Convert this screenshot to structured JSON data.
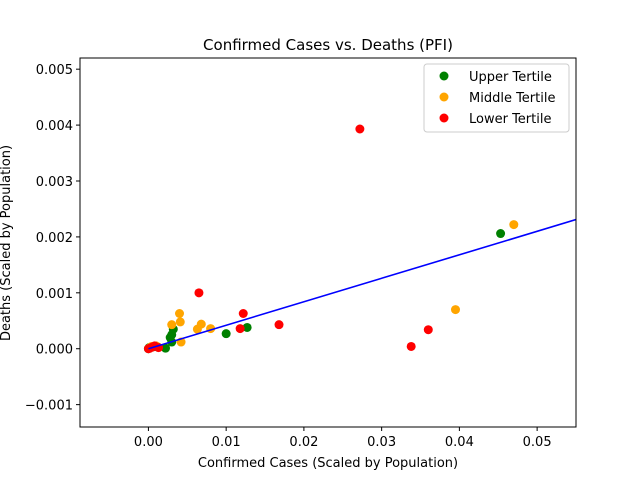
{
  "chart_data": {
    "type": "scatter",
    "title": "Confirmed Cases vs. Deaths (PFI)",
    "xlabel": "Confirmed Cases (Scaled by Population)",
    "ylabel": "Deaths (Scaled by Population)",
    "xlim": [
      -0.0088,
      0.055
    ],
    "ylim": [
      -0.0014,
      0.0052
    ],
    "xticks": [
      0.0,
      0.01,
      0.02,
      0.03,
      0.04,
      0.05
    ],
    "xtick_labels": [
      "0.00",
      "0.01",
      "0.02",
      "0.03",
      "0.04",
      "0.05"
    ],
    "yticks": [
      -0.001,
      0.0,
      0.001,
      0.002,
      0.003,
      0.004,
      0.005
    ],
    "ytick_labels": [
      "−0.001",
      "0.000",
      "0.001",
      "0.002",
      "0.003",
      "0.004",
      "0.005"
    ],
    "grid": false,
    "legend_position": "top-right",
    "series": [
      {
        "name": "Upper Tertile",
        "color": "#008000",
        "points": [
          [
            0.0,
            0.0
          ],
          [
            0.0001,
            2e-05
          ],
          [
            0.0005,
            3e-05
          ],
          [
            0.0008,
            4e-05
          ],
          [
            0.0012,
            3e-05
          ],
          [
            0.0022,
            1e-05
          ],
          [
            0.0028,
            0.0002
          ],
          [
            0.003,
            0.00012
          ],
          [
            0.003,
            0.00025
          ],
          [
            0.0032,
            0.00035
          ],
          [
            0.01,
            0.00027
          ],
          [
            0.0127,
            0.00038
          ],
          [
            0.0453,
            0.00206
          ]
        ]
      },
      {
        "name": "Middle Tertile",
        "color": "#ffa500",
        "points": [
          [
            0.0001,
            1e-05
          ],
          [
            0.0004,
            4e-05
          ],
          [
            0.001,
            5e-05
          ],
          [
            0.003,
            0.00043
          ],
          [
            0.004,
            0.00063
          ],
          [
            0.0041,
            0.00048
          ],
          [
            0.0042,
            0.00012
          ],
          [
            0.0063,
            0.00035
          ],
          [
            0.0068,
            0.00044
          ],
          [
            0.008,
            0.00036
          ],
          [
            0.0395,
            0.0007
          ],
          [
            0.047,
            0.00222
          ]
        ]
      },
      {
        "name": "Lower Tertile",
        "color": "#ff0000",
        "points": [
          [
            0.0,
            0.0
          ],
          [
            0.0002,
            1e-05
          ],
          [
            0.0005,
            3e-05
          ],
          [
            0.0008,
            5e-05
          ],
          [
            0.0013,
            2e-05
          ],
          [
            0.0065,
            0.001
          ],
          [
            0.0118,
            0.00036
          ],
          [
            0.0122,
            0.00063
          ],
          [
            0.0168,
            0.00043
          ],
          [
            0.0272,
            0.00393
          ],
          [
            0.0338,
            4e-05
          ],
          [
            0.036,
            0.00034
          ]
        ]
      }
    ],
    "fit_line": {
      "color": "#0000ff",
      "slope": 0.042,
      "intercept": 0.0
    }
  }
}
